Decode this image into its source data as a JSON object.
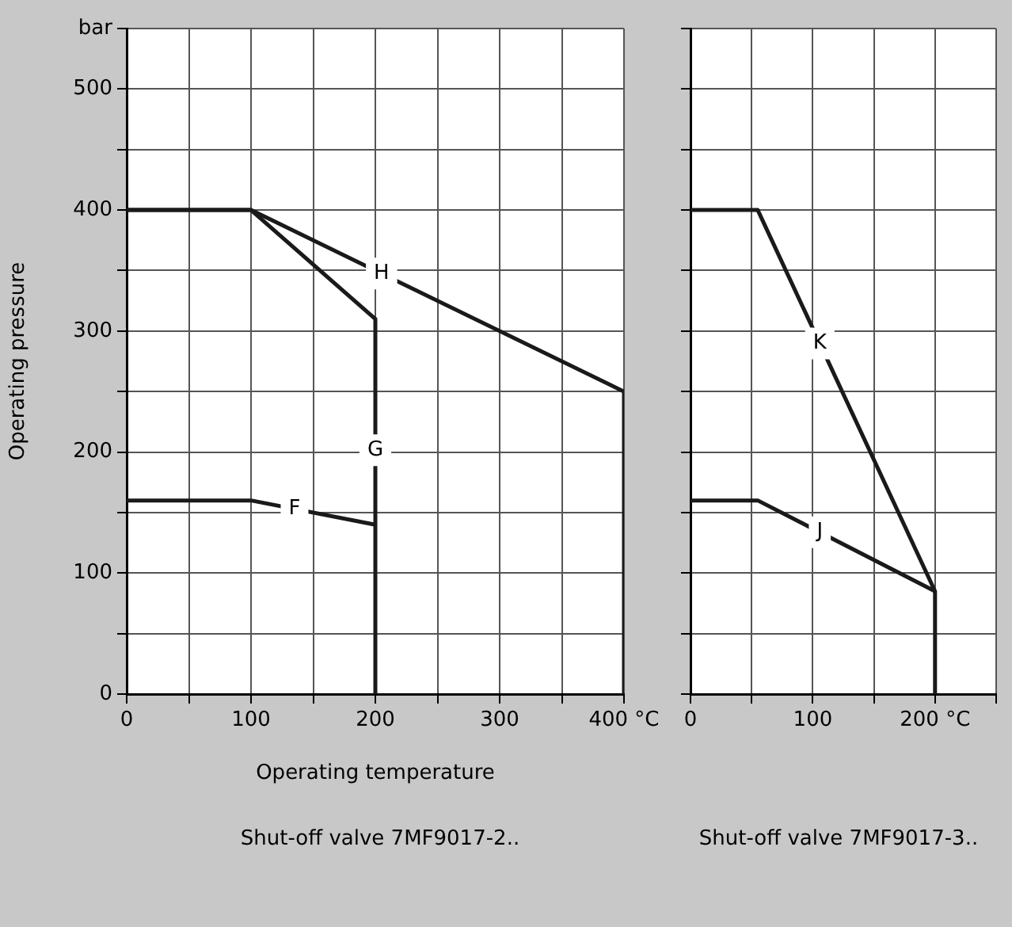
{
  "chart_data": [
    {
      "type": "line",
      "ylabel": "Operating pressure",
      "xlabel": "Operating temperature",
      "annotations": [
        "Shut-off valve 7MF9017-2.."
      ],
      "xlim": [
        0,
        400
      ],
      "ylim": [
        0,
        550
      ],
      "xticks": [
        0,
        {
          "value": 50,
          "label": null
        },
        100,
        {
          "value": 150,
          "label": null
        },
        200,
        {
          "value": 250,
          "label": null
        },
        300,
        {
          "value": 350,
          "label": null
        },
        {
          "value": 400,
          "label": "400 °C"
        }
      ],
      "yticks": [
        0,
        {
          "value": 50,
          "label": null
        },
        100,
        {
          "value": 150,
          "label": null
        },
        200,
        {
          "value": 250,
          "label": null
        },
        300,
        {
          "value": 350,
          "label": null
        },
        400,
        {
          "value": 450,
          "label": null
        },
        500,
        {
          "value": 550,
          "label": "bar"
        }
      ],
      "grid": true,
      "legend": false,
      "series": [
        {
          "name": "F",
          "color": "#1a1a1a",
          "x": [
            0,
            100,
            200
          ],
          "values": [
            160,
            160,
            140
          ]
        },
        {
          "name": "G",
          "color": "#1a1a1a",
          "x": [
            0,
            100,
            200,
            200
          ],
          "values": [
            400,
            400,
            310,
            0
          ]
        },
        {
          "name": "H",
          "color": "#1a1a1a",
          "x": [
            0,
            100,
            400,
            400
          ],
          "values": [
            400,
            400,
            250,
            0
          ]
        }
      ]
    },
    {
      "type": "line",
      "annotations": [
        "Shut-off valve 7MF9017-3.."
      ],
      "xlim": [
        0,
        250
      ],
      "ylim": [
        0,
        550
      ],
      "tick_labels": "x",
      "xticks": [
        0,
        {
          "value": 50,
          "label": null
        },
        100,
        {
          "value": 150,
          "label": null
        },
        {
          "value": 200,
          "label": "200 °C"
        },
        {
          "value": 250,
          "label": null
        }
      ],
      "yticks": [
        0,
        {
          "value": 50,
          "label": null
        },
        100,
        {
          "value": 150,
          "label": null
        },
        200,
        {
          "value": 250,
          "label": null
        },
        300,
        {
          "value": 350,
          "label": null
        },
        400,
        {
          "value": 450,
          "label": null
        },
        500,
        {
          "value": 550,
          "label": null
        }
      ],
      "grid": true,
      "legend": false,
      "series": [
        {
          "name": "J",
          "color": "#1a1a1a",
          "x": [
            0,
            55,
            200
          ],
          "values": [
            160,
            160,
            85
          ]
        },
        {
          "name": "K",
          "color": "#1a1a1a",
          "x": [
            0,
            55,
            200,
            200
          ],
          "values": [
            400,
            400,
            85,
            0
          ]
        }
      ]
    }
  ]
}
